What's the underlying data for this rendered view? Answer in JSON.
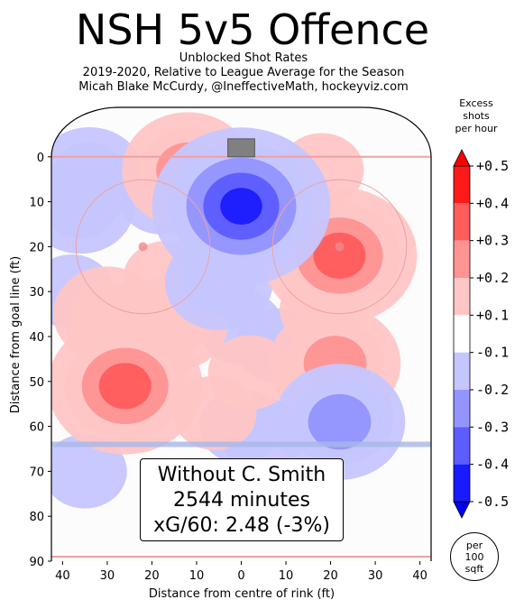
{
  "title": "NSH 5v5 Offence",
  "subtitle_lines": [
    "Unblocked Shot Rates",
    "2019-2020, Relative to League Average for the Season",
    "Micah Blake McCurdy, @IneffectiveMath, hockeyviz.com"
  ],
  "colorbar": {
    "title_lines": [
      "Excess",
      "shots",
      "per hour"
    ],
    "ticks": [
      "+0.5",
      "+0.4",
      "+0.3",
      "+0.2",
      "+0.1",
      "-0.1",
      "-0.2",
      "-0.3",
      "-0.4",
      "-0.5"
    ],
    "colors": [
      "#ff1a1a",
      "#ff5c5c",
      "#ff9494",
      "#ffc6c6",
      "#ffffff",
      "#c6c6ff",
      "#9494ff",
      "#5c5cff",
      "#1a1aff"
    ]
  },
  "unit_badge": [
    "per",
    "100",
    "sqft"
  ],
  "info_box": [
    "Without C. Smith",
    "2544 minutes",
    "xG/60: 2.48 (-3%)"
  ],
  "chart_data": {
    "type": "heatmap",
    "xlabel": "Distance from centre of rink (ft)",
    "ylabel": "Distance from goal line (ft)",
    "xlim": [
      42.5,
      -42.5
    ],
    "ylim": [
      90,
      -10
    ],
    "xticks": [
      40,
      30,
      20,
      10,
      0,
      10,
      20,
      30,
      40
    ],
    "xtick_values": [
      40,
      30,
      20,
      10,
      0,
      -10,
      -20,
      -30,
      -40
    ],
    "yticks": [
      0,
      10,
      20,
      30,
      40,
      50,
      60,
      70,
      80,
      90
    ],
    "blue_line_y": 64,
    "hotspots": [
      {
        "x": 0,
        "y": 11,
        "value": -0.5
      },
      {
        "x": -22,
        "y": 22,
        "value": 0.4
      },
      {
        "x": 26,
        "y": 51,
        "value": 0.4
      },
      {
        "x": -21,
        "y": 46,
        "value": 0.3
      },
      {
        "x": 12,
        "y": 3,
        "value": 0.3
      },
      {
        "x": 34,
        "y": 4,
        "value": -0.2
      },
      {
        "x": 36,
        "y": 11,
        "value": -0.2
      },
      {
        "x": 18,
        "y": 9,
        "value": -0.1
      },
      {
        "x": -18,
        "y": 3,
        "value": 0.1
      },
      {
        "x": 17,
        "y": 27,
        "value": 0.1
      },
      {
        "x": 30,
        "y": 37,
        "value": 0.1
      },
      {
        "x": 15,
        "y": 37,
        "value": 0.2
      },
      {
        "x": 30,
        "y": 35,
        "value": 0.2
      },
      {
        "x": 5,
        "y": 28,
        "value": -0.2
      },
      {
        "x": 0,
        "y": 38,
        "value": -0.1
      },
      {
        "x": -8,
        "y": 42,
        "value": -0.1
      },
      {
        "x": 38,
        "y": 30,
        "value": -0.1
      },
      {
        "x": 35,
        "y": 70,
        "value": -0.1
      },
      {
        "x": -22,
        "y": 58,
        "value": -0.2
      },
      {
        "x": -22,
        "y": 59,
        "value": -0.3
      },
      {
        "x": 0,
        "y": 60,
        "value": -0.1
      },
      {
        "x": -5,
        "y": 62,
        "value": -0.1
      },
      {
        "x": 6,
        "y": 57,
        "value": 0.1
      },
      {
        "x": -2,
        "y": 48,
        "value": 0.1
      },
      {
        "x": -18,
        "y": 34,
        "value": 0.1
      },
      {
        "x": 20,
        "y": 43,
        "value": 0.1
      }
    ]
  }
}
